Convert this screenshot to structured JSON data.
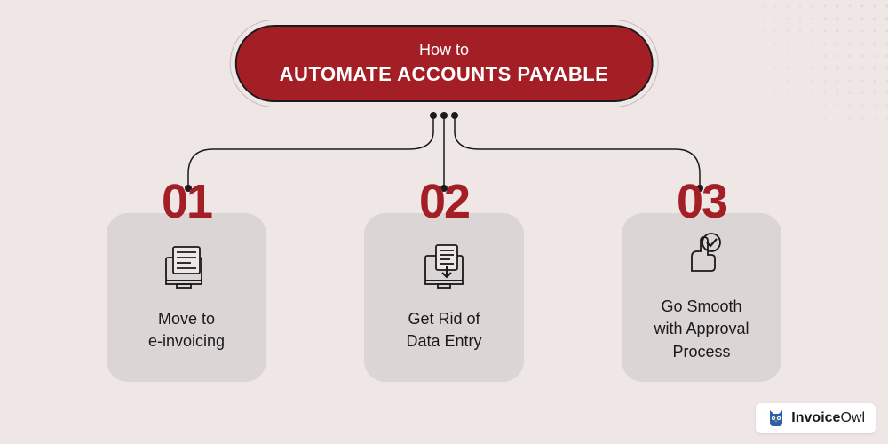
{
  "type": "infographic",
  "background_color": "#efe6e6",
  "header": {
    "line1": "How to",
    "line2": "AUTOMATE ACCOUNTS PAYABLE",
    "bg_color": "#a41e26",
    "text_color": "#ffffff",
    "border_color": "#1a1a1a",
    "line1_fontsize": 18,
    "line2_fontsize": 22
  },
  "connector": {
    "stroke_color": "#1a1a1a",
    "stroke_width": 1.5,
    "dot_radius": 4
  },
  "steps": [
    {
      "number": "01",
      "label": "Move to\ne-invoicing",
      "number_color": "#a41e26",
      "card_bg": "#dcd5d5",
      "icon": "einvoice-icon"
    },
    {
      "number": "02",
      "label": "Get Rid of\nData Entry",
      "number_color": "#a41e26",
      "card_bg": "#dcd5d5",
      "icon": "data-entry-icon"
    },
    {
      "number": "03",
      "label": "Go Smooth\nwith Approval\nProcess",
      "number_color": "#a41e26",
      "card_bg": "#dcd5d5",
      "icon": "approval-icon"
    }
  ],
  "number_fontsize": 54,
  "label_fontsize": 18,
  "card_radius": 24,
  "brand": {
    "name_bold": "Invoice",
    "name_rest": "Owl",
    "bg": "#ffffff",
    "owl_primary": "#2e5faa",
    "owl_accent": "#f08c1e"
  },
  "dot_pattern": {
    "dot_color": "#d6cccc",
    "spacing": 14
  }
}
